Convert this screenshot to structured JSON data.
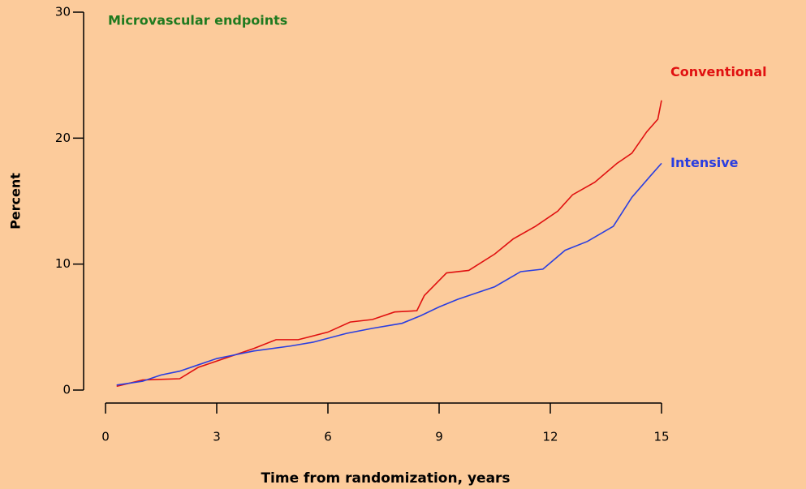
{
  "chart_data": {
    "type": "line",
    "title": "Microvascular endpoints",
    "xlabel": "Time from randomization, years",
    "ylabel": "Percent",
    "xlim": [
      0,
      15
    ],
    "xticks": [
      0,
      3,
      6,
      9,
      12,
      15
    ],
    "ylim": [
      0,
      30
    ],
    "yticks": [
      0,
      10,
      20,
      30
    ],
    "grid": false,
    "series": [
      {
        "name": "Conventional",
        "color": "#e01010",
        "x": [
          0.3,
          1,
          2,
          2.5,
          3,
          4,
          4.6,
          5.2,
          6,
          6.6,
          7.2,
          7.8,
          8.4,
          8.6,
          9.2,
          9.8,
          10.5,
          11,
          11.6,
          12.2,
          12.6,
          13.2,
          13.8,
          14.2,
          14.6,
          14.9,
          15
        ],
        "values": [
          0.3,
          0.8,
          0.9,
          1.8,
          2.3,
          3.3,
          4,
          4,
          4.6,
          5.4,
          5.6,
          6.2,
          6.3,
          7.5,
          9.3,
          9.5,
          10.8,
          12,
          13,
          14.2,
          15.5,
          16.5,
          18,
          18.8,
          20.5,
          21.5,
          23
        ]
      },
      {
        "name": "Intensive",
        "color": "#2a3ee0",
        "x": [
          0.3,
          1,
          1.5,
          2,
          2.5,
          3,
          3.5,
          4,
          5,
          5.6,
          6.5,
          7.2,
          8,
          8.5,
          9,
          9.5,
          10.5,
          11.2,
          11.8,
          12.4,
          13,
          13.7,
          14.2,
          14.7,
          15
        ],
        "values": [
          0.4,
          0.7,
          1.2,
          1.5,
          2,
          2.5,
          2.8,
          3.1,
          3.5,
          3.8,
          4.5,
          4.9,
          5.3,
          5.9,
          6.6,
          7.2,
          8.2,
          9.4,
          9.6,
          11.1,
          11.8,
          13,
          15.3,
          17,
          18
        ]
      }
    ]
  }
}
